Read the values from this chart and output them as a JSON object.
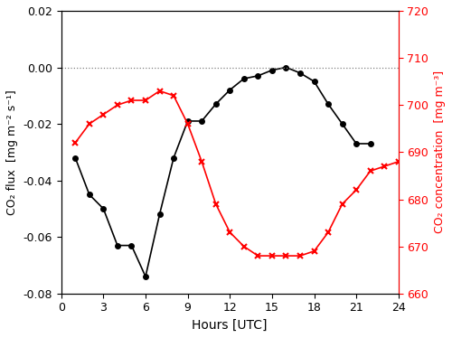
{
  "flux_hours": [
    1,
    2,
    3,
    4,
    5,
    6,
    7,
    8,
    9,
    10,
    11,
    12,
    13,
    14,
    15,
    16,
    17,
    18,
    19,
    20,
    21,
    22
  ],
  "flux_values": [
    -0.032,
    -0.045,
    -0.05,
    -0.063,
    -0.063,
    -0.074,
    -0.052,
    -0.032,
    -0.019,
    -0.019,
    -0.013,
    -0.008,
    -0.004,
    -0.003,
    -0.001,
    0.0,
    -0.002,
    -0.005,
    -0.013,
    -0.02,
    -0.027,
    -0.027
  ],
  "conc_hours": [
    1,
    2,
    3,
    4,
    5,
    6,
    7,
    8,
    9,
    10,
    11,
    12,
    13,
    14,
    15,
    16,
    17,
    18,
    19,
    20,
    21,
    22,
    23,
    24
  ],
  "conc_values": [
    692,
    696,
    698,
    700,
    701,
    701,
    703,
    702,
    696,
    688,
    679,
    673,
    670,
    668,
    668,
    668,
    668,
    669,
    673,
    679,
    682,
    686,
    687,
    688
  ],
  "flux_color": "black",
  "conc_color": "red",
  "flux_ylabel": "CO₂ flux  [mg m⁻² s⁻¹]",
  "conc_ylabel": "CO₂ concentration  [mg m⁻³]",
  "xlabel": "Hours [UTC]",
  "flux_ylim": [
    -0.08,
    0.02
  ],
  "conc_ylim": [
    660,
    720
  ],
  "flux_yticks": [
    -0.08,
    -0.06,
    -0.04,
    -0.02,
    0.0,
    0.02
  ],
  "conc_yticks": [
    660,
    670,
    680,
    690,
    700,
    710,
    720
  ],
  "xticks": [
    0,
    3,
    6,
    9,
    12,
    15,
    18,
    21,
    24
  ],
  "xlim": [
    0,
    24
  ],
  "hline_y": 0.0
}
